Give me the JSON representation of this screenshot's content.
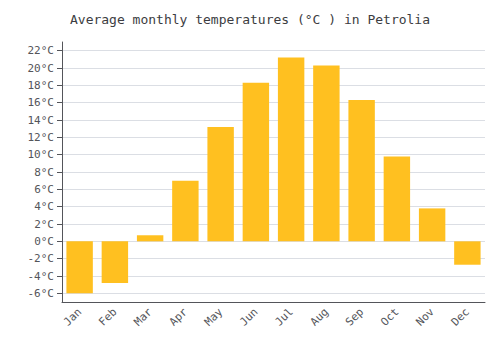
{
  "chart_data": {
    "type": "bar",
    "title": "Average monthly temperatures (°C ) in Petrolia",
    "categories": [
      "Jan",
      "Feb",
      "Mar",
      "Apr",
      "May",
      "Jun",
      "Jul",
      "Aug",
      "Sep",
      "Oct",
      "Nov",
      "Dec"
    ],
    "values": [
      -6.0,
      -4.8,
      0.7,
      7.0,
      13.2,
      18.3,
      21.2,
      20.3,
      16.3,
      9.8,
      3.8,
      -2.7
    ],
    "color": "#FFC020",
    "ylim": [
      -7,
      23
    ],
    "yticks": [
      {
        "value": -6,
        "label": "-6°C"
      },
      {
        "value": -4,
        "label": "-4°C"
      },
      {
        "value": -2,
        "label": "-2°C"
      },
      {
        "value": 0,
        "label": "0°C"
      },
      {
        "value": 2,
        "label": "2°C"
      },
      {
        "value": 4,
        "label": "4°C"
      },
      {
        "value": 6,
        "label": "6°C"
      },
      {
        "value": 8,
        "label": "8°C"
      },
      {
        "value": 10,
        "label": "10°C"
      },
      {
        "value": 12,
        "label": "12°C"
      },
      {
        "value": 14,
        "label": "14°C"
      },
      {
        "value": 16,
        "label": "16°C"
      },
      {
        "value": 18,
        "label": "18°C"
      },
      {
        "value": 20,
        "label": "20°C"
      },
      {
        "value": 22,
        "label": "22°C"
      }
    ],
    "grid": true
  }
}
